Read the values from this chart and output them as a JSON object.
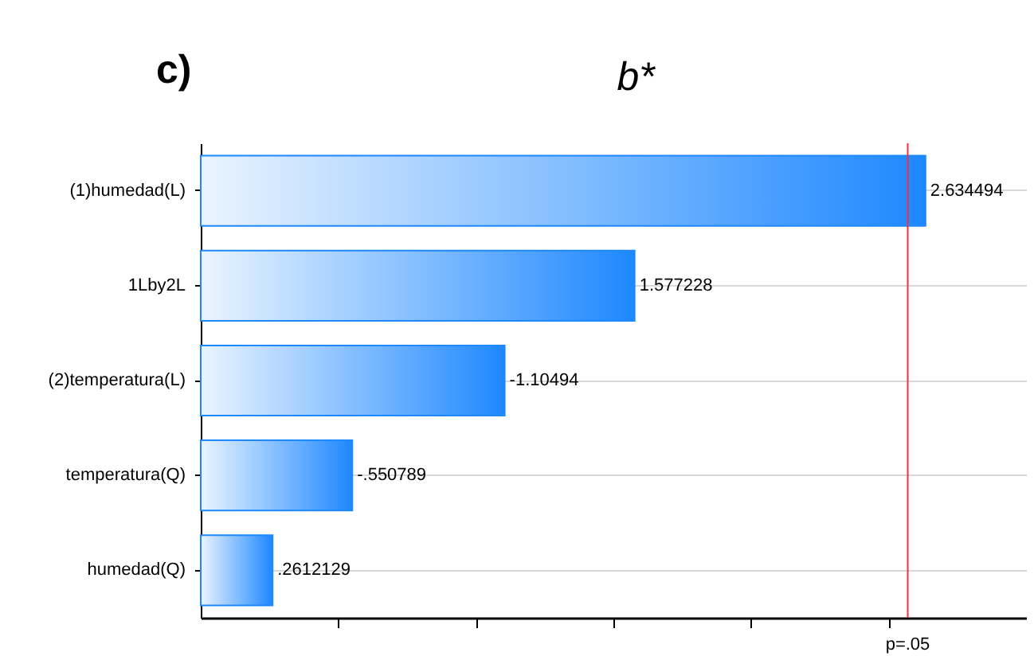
{
  "chart_data": {
    "type": "bar",
    "orientation": "horizontal",
    "title": "b*",
    "annotations": [
      "c)",
      {
        "text": "-1.10494",
        "x": 1.10494,
        "y": "(2)temperatura(L)"
      },
      {
        "text": "-.550789",
        "x": 0.550789,
        "y": "temperatura(Q)"
      }
    ],
    "value_labels": [
      "2.634494",
      "1.577228",
      null,
      null,
      ".2612129"
    ],
    "categories": [
      "(1)humedad(L)",
      "1Lby2L",
      "(2)temperatura(L)",
      "temperatura(Q)",
      "humedad(Q)"
    ],
    "values": [
      2.634494,
      1.577228,
      1.10494,
      0.550789,
      0.2612129
    ],
    "color": "#1e88ff",
    "xlim": [
      0,
      3.0
    ],
    "xticks": [
      {
        "value": 0.5,
        "label": null
      },
      {
        "value": 1,
        "label": null
      },
      {
        "value": 1.5,
        "label": null
      },
      {
        "value": 2,
        "label": null
      },
      {
        "value": 2.5,
        "label": null
      }
    ],
    "grid": "y",
    "ref_lines": [
      {
        "axis": "x",
        "value": 2.57,
        "label": "p=.05",
        "color": "#e8343a"
      }
    ]
  }
}
